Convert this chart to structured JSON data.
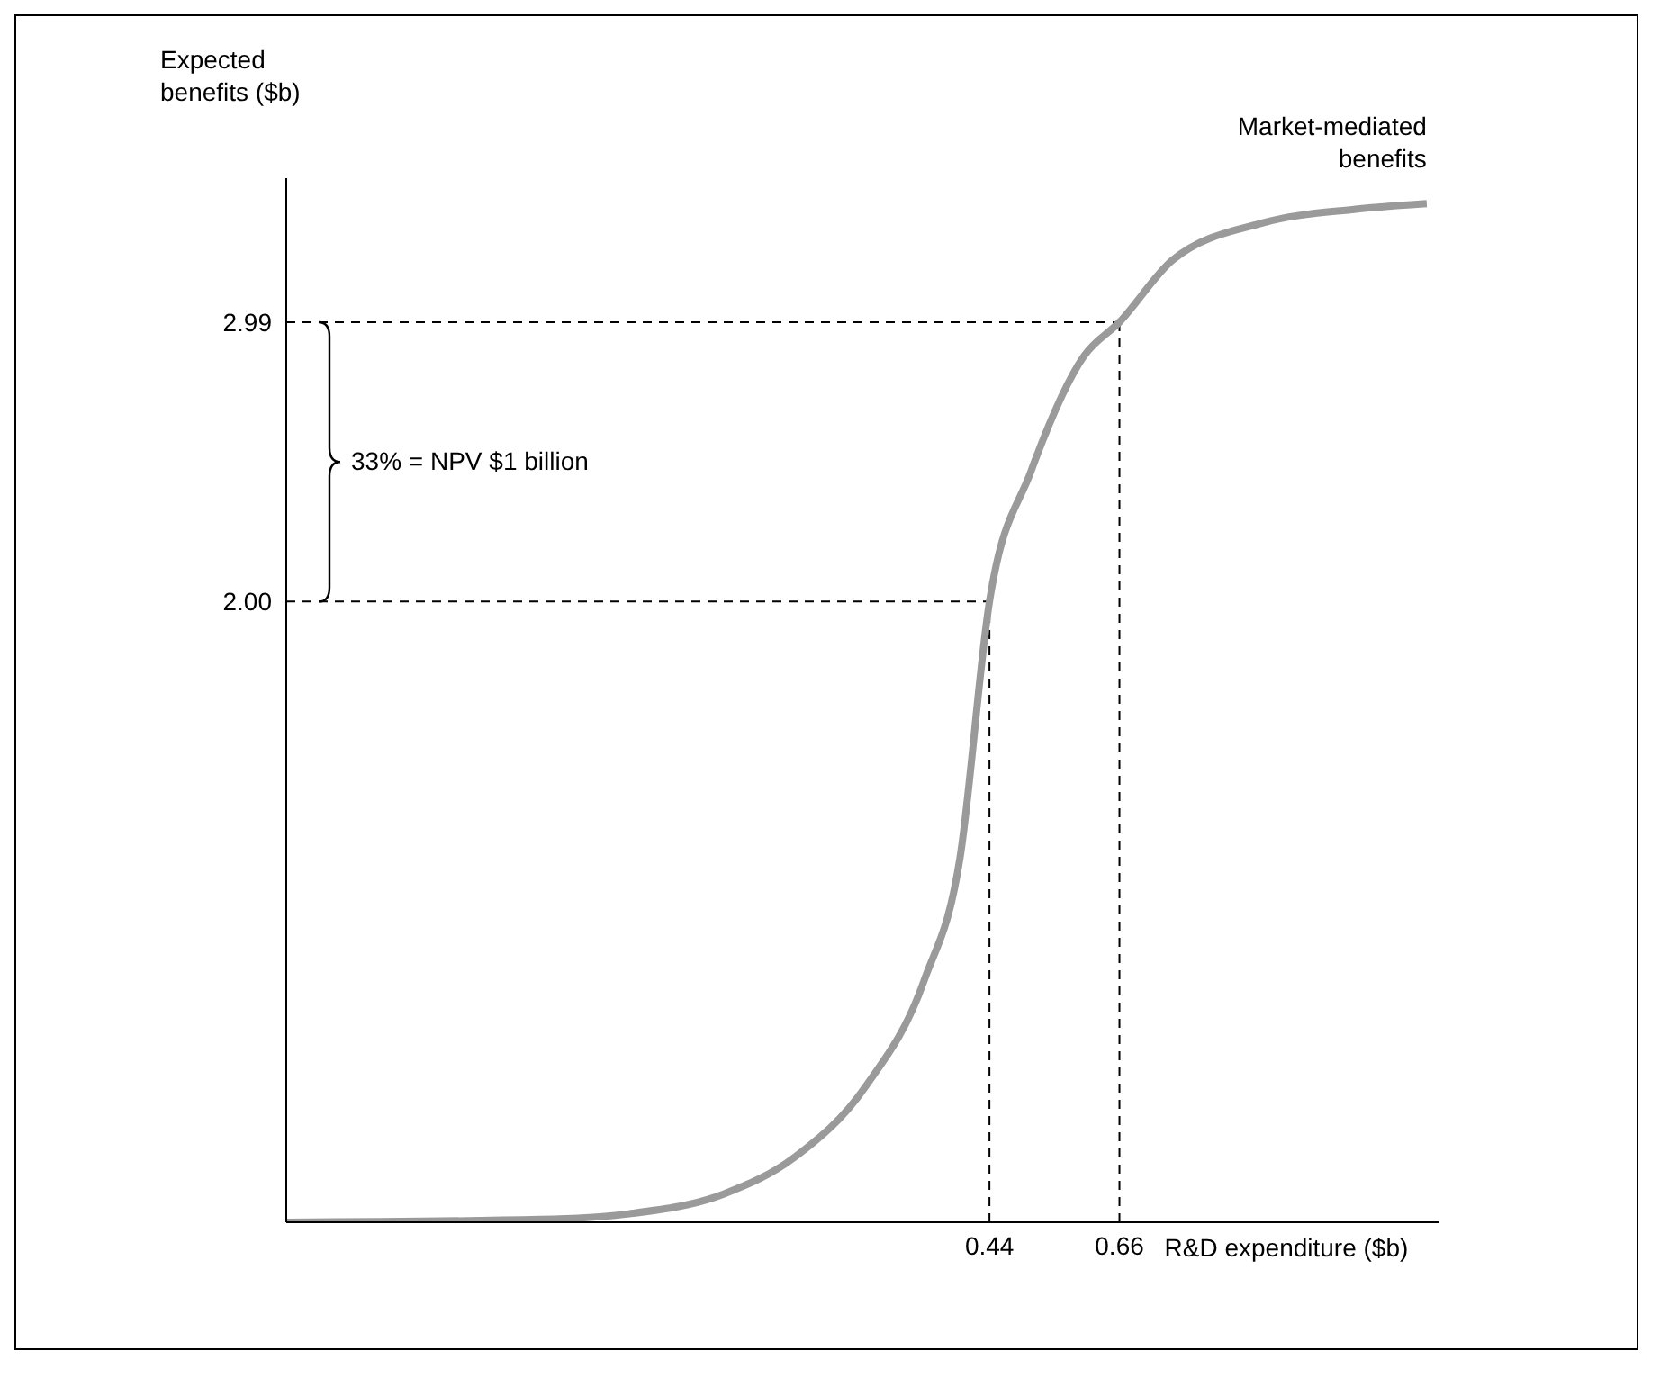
{
  "chart_data": {
    "type": "line",
    "ylabel": "Expected benefits ($b)",
    "xlabel": "R&D expenditure ($b)",
    "x": [
      -0.75,
      -0.32,
      -0.17,
      -0.01,
      0.11,
      0.23,
      0.33,
      0.39,
      0.44,
      0.51,
      0.6,
      0.66,
      0.75,
      0.9,
      1.06,
      1.18
    ],
    "series": [
      {
        "name": "Market-mediated benefits",
        "color": "#9a9a9a",
        "values": [
          -0.2,
          -0.19,
          -0.17,
          -0.1,
          0.03,
          0.28,
          0.66,
          1.09,
          2.0,
          2.46,
          2.87,
          2.99,
          3.21,
          3.34,
          3.39,
          3.41
        ]
      }
    ],
    "xlim": [
      -0.75,
      1.2
    ],
    "ylim": [
      -0.2,
      3.5
    ],
    "xticks": [
      0.44,
      0.66
    ],
    "yticks": [
      {
        "value": 2,
        "label": "2.00"
      },
      2.99
    ],
    "ref_lines": [
      {
        "axis": "y",
        "value": 2,
        "line_style": "dashed",
        "color": "#000000"
      },
      {
        "axis": "y",
        "value": 2.99,
        "line_style": "dashed",
        "color": "#000000"
      },
      {
        "axis": "x",
        "value": 0.44,
        "line_style": "dashed",
        "color": "#000000"
      },
      {
        "axis": "x",
        "value": 0.66,
        "line_style": "dashed",
        "color": "#000000"
      }
    ],
    "annotations": [
      "33% = NPV $1 billion"
    ],
    "grid": false,
    "marker": "none",
    "line_style": "solid"
  }
}
